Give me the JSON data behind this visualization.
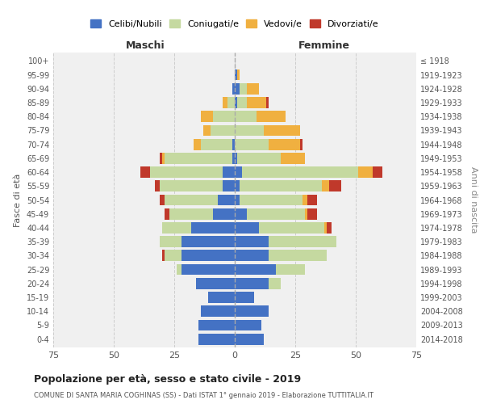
{
  "age_groups": [
    "0-4",
    "5-9",
    "10-14",
    "15-19",
    "20-24",
    "25-29",
    "30-34",
    "35-39",
    "40-44",
    "45-49",
    "50-54",
    "55-59",
    "60-64",
    "65-69",
    "70-74",
    "75-79",
    "80-84",
    "85-89",
    "90-94",
    "95-99",
    "100+"
  ],
  "birth_years": [
    "2014-2018",
    "2009-2013",
    "2004-2008",
    "1999-2003",
    "1994-1998",
    "1989-1993",
    "1984-1988",
    "1979-1983",
    "1974-1978",
    "1969-1973",
    "1964-1968",
    "1959-1963",
    "1954-1958",
    "1949-1953",
    "1944-1948",
    "1939-1943",
    "1934-1938",
    "1929-1933",
    "1924-1928",
    "1919-1923",
    "≤ 1918"
  ],
  "males": {
    "celibi": [
      15,
      15,
      14,
      11,
      16,
      22,
      22,
      22,
      18,
      9,
      7,
      5,
      5,
      1,
      1,
      0,
      0,
      0,
      1,
      0,
      0
    ],
    "coniugati": [
      0,
      0,
      0,
      0,
      0,
      2,
      7,
      9,
      12,
      18,
      22,
      26,
      30,
      28,
      13,
      10,
      9,
      3,
      0,
      0,
      0
    ],
    "vedovi": [
      0,
      0,
      0,
      0,
      0,
      0,
      0,
      0,
      0,
      0,
      0,
      0,
      0,
      1,
      3,
      3,
      5,
      2,
      0,
      0,
      0
    ],
    "divorziati": [
      0,
      0,
      0,
      0,
      0,
      0,
      1,
      0,
      0,
      2,
      2,
      2,
      4,
      1,
      0,
      0,
      0,
      0,
      0,
      0,
      0
    ]
  },
  "females": {
    "nubili": [
      12,
      11,
      14,
      8,
      14,
      17,
      14,
      14,
      10,
      5,
      2,
      2,
      3,
      1,
      0,
      0,
      0,
      1,
      2,
      1,
      0
    ],
    "coniugate": [
      0,
      0,
      0,
      0,
      5,
      12,
      24,
      28,
      27,
      24,
      26,
      34,
      48,
      18,
      14,
      12,
      9,
      4,
      3,
      0,
      0
    ],
    "vedove": [
      0,
      0,
      0,
      0,
      0,
      0,
      0,
      0,
      1,
      1,
      2,
      3,
      6,
      10,
      13,
      15,
      12,
      8,
      5,
      1,
      0
    ],
    "divorziate": [
      0,
      0,
      0,
      0,
      0,
      0,
      0,
      0,
      2,
      4,
      4,
      5,
      4,
      0,
      1,
      0,
      0,
      1,
      0,
      0,
      0
    ]
  },
  "colors": {
    "celibi": "#4472c4",
    "coniugati": "#c5d9a0",
    "vedovi": "#f0b040",
    "divorziati": "#c0392b"
  },
  "title": "Popolazione per età, sesso e stato civile - 2019",
  "subtitle": "COMUNE DI SANTA MARIA COGHINAS (SS) - Dati ISTAT 1° gennaio 2019 - Elaborazione TUTTITALIA.IT",
  "xlabel_left": "Maschi",
  "xlabel_right": "Femmine",
  "ylabel_left": "Fasce di età",
  "ylabel_right": "Anni di nascita",
  "xlim": 75,
  "legend_labels": [
    "Celibi/Nubili",
    "Coniugati/e",
    "Vedovi/e",
    "Divorziati/e"
  ],
  "bg_color": "#ffffff",
  "plot_bg": "#f0f0f0",
  "grid_color": "#cccccc"
}
